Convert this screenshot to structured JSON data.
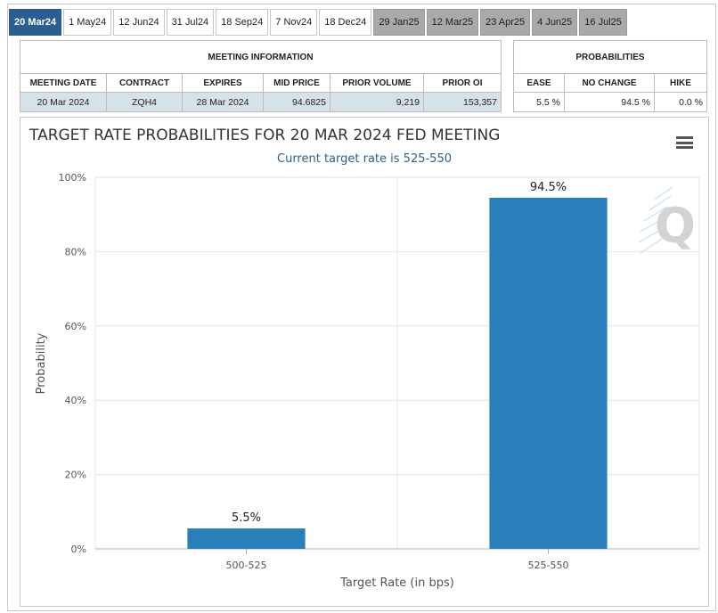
{
  "tabs": [
    {
      "label": "20 Mar24",
      "state": "active"
    },
    {
      "label": "1 May24",
      "state": "normal"
    },
    {
      "label": "12 Jun24",
      "state": "normal"
    },
    {
      "label": "31 Jul24",
      "state": "normal"
    },
    {
      "label": "18 Sep24",
      "state": "normal"
    },
    {
      "label": "7 Nov24",
      "state": "normal"
    },
    {
      "label": "18 Dec24",
      "state": "normal"
    },
    {
      "label": "29 Jan25",
      "state": "future"
    },
    {
      "label": "12 Mar25",
      "state": "future"
    },
    {
      "label": "23 Apr25",
      "state": "future"
    },
    {
      "label": "4 Jun25",
      "state": "future"
    },
    {
      "label": "16 Jul25",
      "state": "future"
    }
  ],
  "meeting_info": {
    "header": "MEETING INFORMATION",
    "columns": [
      "MEETING DATE",
      "CONTRACT",
      "EXPIRES",
      "MID PRICE",
      "PRIOR VOLUME",
      "PRIOR OI"
    ],
    "row": [
      "20 Mar 2024",
      "ZQH4",
      "28 Mar 2024",
      "94.6825",
      "9,219",
      "153,357"
    ]
  },
  "probabilities": {
    "header": "PROBABILITIES",
    "columns": [
      "EASE",
      "NO CHANGE",
      "HIKE"
    ],
    "row": [
      "5.5 %",
      "94.5 %",
      "0.0 %"
    ]
  },
  "chart_data": {
    "type": "bar",
    "title": "TARGET RATE PROBABILITIES FOR 20 MAR 2024 FED MEETING",
    "subtitle": "Current target rate is 525-550",
    "xlabel": "Target Rate (in bps)",
    "ylabel": "Probability",
    "categories": [
      "500-525",
      "525-550"
    ],
    "values": [
      5.5,
      94.5
    ],
    "data_labels": [
      "5.5%",
      "94.5%"
    ],
    "ylim": [
      0,
      100
    ],
    "yticks": [
      0,
      20,
      40,
      60,
      80,
      100
    ],
    "ytick_labels": [
      "0%",
      "20%",
      "40%",
      "60%",
      "80%",
      "100%"
    ],
    "bar_color": "#2a7fba",
    "grid": true,
    "watermark": "Q"
  }
}
